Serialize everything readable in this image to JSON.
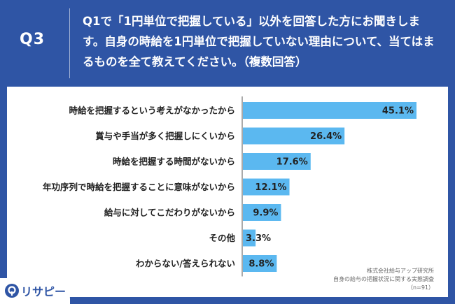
{
  "header": {
    "qnum": "Q3",
    "question": "Q1で「1円単位で把握している」以外を回答した方にお聞きします。自身の時給を1円単位で把握していない理由について、当てはまるものを全て教えてください。（複数回答）"
  },
  "chart_data": {
    "type": "bar",
    "orientation": "horizontal",
    "categories": [
      "時給を把握するという考えがなかったから",
      "賞与や手当が多く把握しにくいから",
      "時給を把握する時間がないから",
      "年功序列で時給を把握することに意味がないから",
      "給与に対してこだわりがないから",
      "その他",
      "わからない/答えられない"
    ],
    "values": [
      45.1,
      26.4,
      17.6,
      12.1,
      9.9,
      3.3,
      8.8
    ],
    "value_labels": [
      "45.1%",
      "26.4%",
      "17.6%",
      "12.1%",
      "9.9%",
      "3.3%",
      "8.8%"
    ],
    "xlim": [
      0,
      45.1
    ],
    "grid": false,
    "bar_color": "#5bb8f0"
  },
  "source": {
    "line1": "株式会社給与アップ研究所",
    "line2": "自身の給与の把握状況に関する実態調査",
    "line3": "（n=91）"
  },
  "logo": {
    "text": "リサピー"
  }
}
